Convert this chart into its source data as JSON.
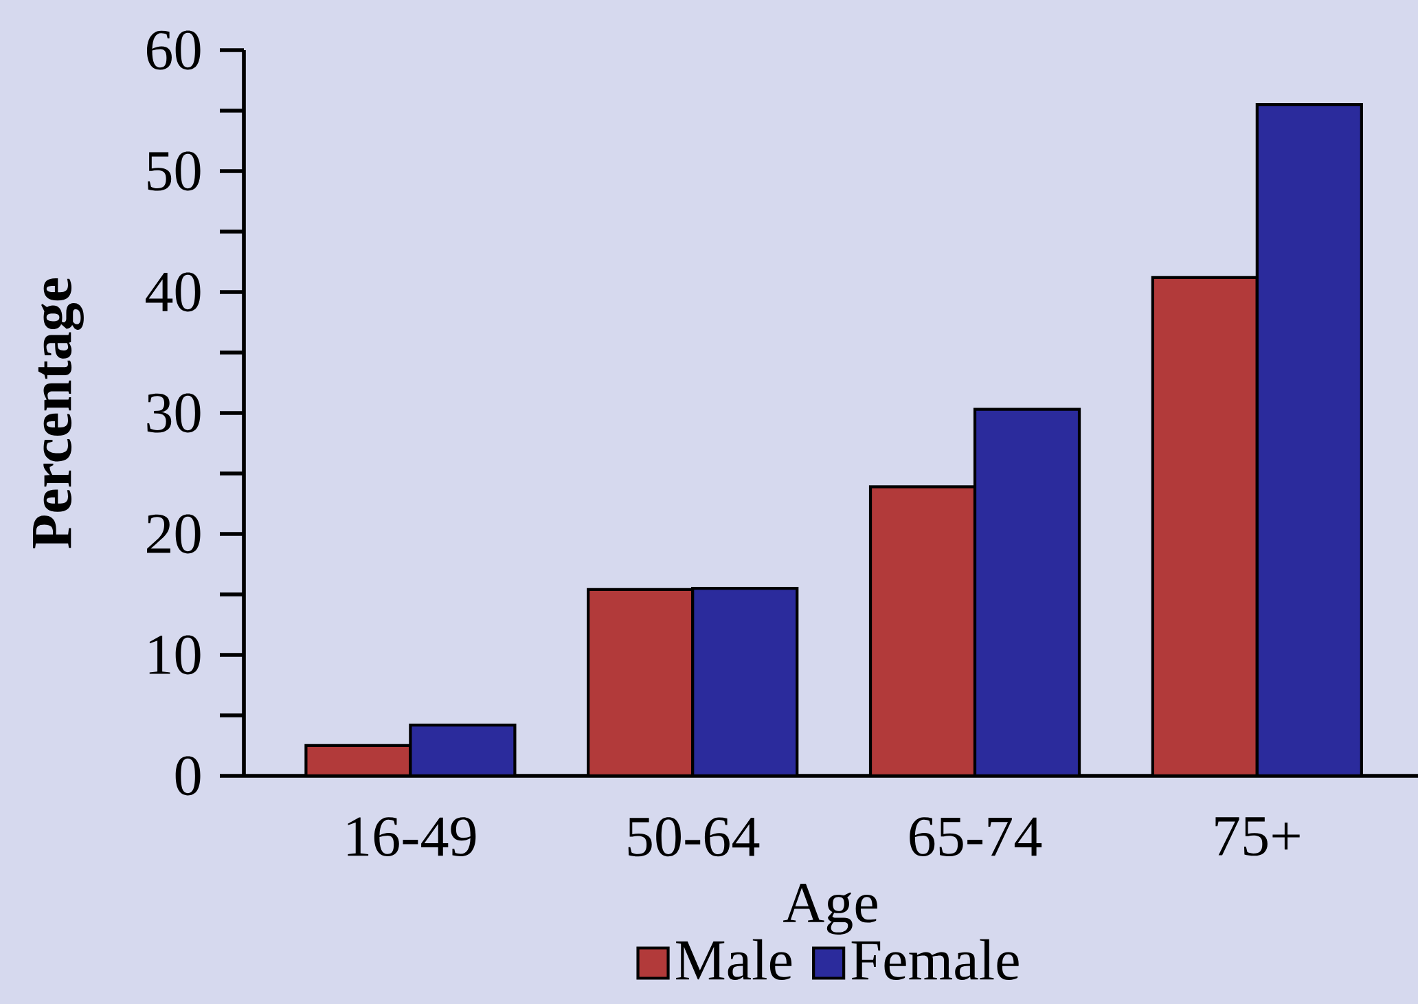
{
  "chart_data": {
    "type": "bar",
    "xlabel": "Age",
    "ylabel": "Percentage",
    "categories": [
      "16-49",
      "50-64",
      "65-74",
      "75+"
    ],
    "series": [
      {
        "name": "Male",
        "color": "#b23a3a",
        "values": [
          2.5,
          15.4,
          23.9,
          41.2
        ]
      },
      {
        "name": "Female",
        "color": "#2b2b9c",
        "values": [
          4.2,
          15.5,
          30.3,
          55.5
        ]
      }
    ],
    "ylim": [
      0,
      60
    ],
    "yticks": [
      0,
      10,
      20,
      30,
      40,
      50,
      60
    ],
    "legend": "bottom",
    "grid": false
  }
}
